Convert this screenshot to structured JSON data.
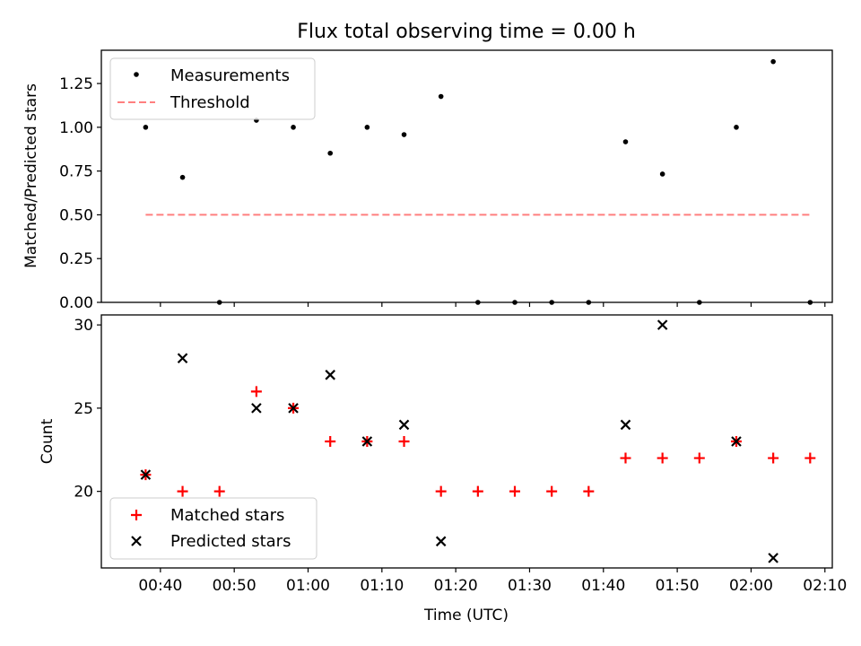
{
  "title": "Flux total observing time = 0.00 h",
  "colors": {
    "measurement": "#000000",
    "threshold": "#ff7f7f",
    "matched": "#ff0000",
    "predicted": "#000000"
  },
  "chart_data": [
    {
      "type": "scatter",
      "ylabel": "Matched/Predicted stars",
      "ylim": [
        0,
        1.44
      ],
      "yticks": [
        "0.00",
        "0.25",
        "0.50",
        "0.75",
        "1.00",
        "1.25"
      ],
      "grid": false,
      "legend_position": "top-left",
      "series": [
        {
          "name": "Measurements",
          "marker": "dot",
          "points": [
            [
              "00:38",
              1.0
            ],
            [
              "00:43",
              0.714
            ],
            [
              "00:48",
              0.0
            ],
            [
              "00:53",
              1.04
            ],
            [
              "00:58",
              1.0
            ],
            [
              "01:03",
              0.852
            ],
            [
              "01:08",
              1.0
            ],
            [
              "01:13",
              0.958
            ],
            [
              "01:18",
              1.176
            ],
            [
              "01:23",
              0.0
            ],
            [
              "01:28",
              0.0
            ],
            [
              "01:33",
              0.0
            ],
            [
              "01:38",
              0.0
            ],
            [
              "01:43",
              0.917
            ],
            [
              "01:48",
              0.733
            ],
            [
              "01:53",
              0.0
            ],
            [
              "01:58",
              1.0
            ],
            [
              "02:03",
              1.375
            ],
            [
              "02:08",
              0.0
            ]
          ]
        },
        {
          "name": "Threshold",
          "style": "dashed",
          "points": [
            [
              "00:38",
              0.5
            ],
            [
              "02:08",
              0.5
            ]
          ]
        }
      ]
    },
    {
      "type": "scatter",
      "xlabel": "Time (UTC)",
      "ylabel": "Count",
      "xticks": [
        "00:40",
        "00:50",
        "01:00",
        "01:10",
        "01:20",
        "01:30",
        "01:40",
        "01:50",
        "02:00",
        "02:10"
      ],
      "xlim": [
        "00:32",
        "02:11"
      ],
      "ylim": [
        15.4,
        30.6
      ],
      "yticks": [
        "20",
        "25",
        "30"
      ],
      "grid": false,
      "legend_position": "bottom-left",
      "series": [
        {
          "name": "Matched stars",
          "marker": "plus",
          "points": [
            [
              "00:38",
              21
            ],
            [
              "00:43",
              20
            ],
            [
              "00:48",
              20
            ],
            [
              "00:53",
              26
            ],
            [
              "00:58",
              25
            ],
            [
              "01:03",
              23
            ],
            [
              "01:08",
              23
            ],
            [
              "01:13",
              23
            ],
            [
              "01:18",
              20
            ],
            [
              "01:23",
              20
            ],
            [
              "01:28",
              20
            ],
            [
              "01:33",
              20
            ],
            [
              "01:38",
              20
            ],
            [
              "01:43",
              22
            ],
            [
              "01:48",
              22
            ],
            [
              "01:53",
              22
            ],
            [
              "01:58",
              23
            ],
            [
              "02:03",
              22
            ],
            [
              "02:08",
              22
            ]
          ]
        },
        {
          "name": "Predicted stars",
          "marker": "x",
          "points": [
            [
              "00:38",
              21
            ],
            [
              "00:43",
              28
            ],
            [
              "00:53",
              25
            ],
            [
              "00:58",
              25
            ],
            [
              "01:03",
              27
            ],
            [
              "01:08",
              23
            ],
            [
              "01:13",
              24
            ],
            [
              "01:18",
              17
            ],
            [
              "01:43",
              24
            ],
            [
              "01:48",
              30
            ],
            [
              "01:58",
              23
            ],
            [
              "02:03",
              16
            ]
          ]
        }
      ]
    }
  ]
}
